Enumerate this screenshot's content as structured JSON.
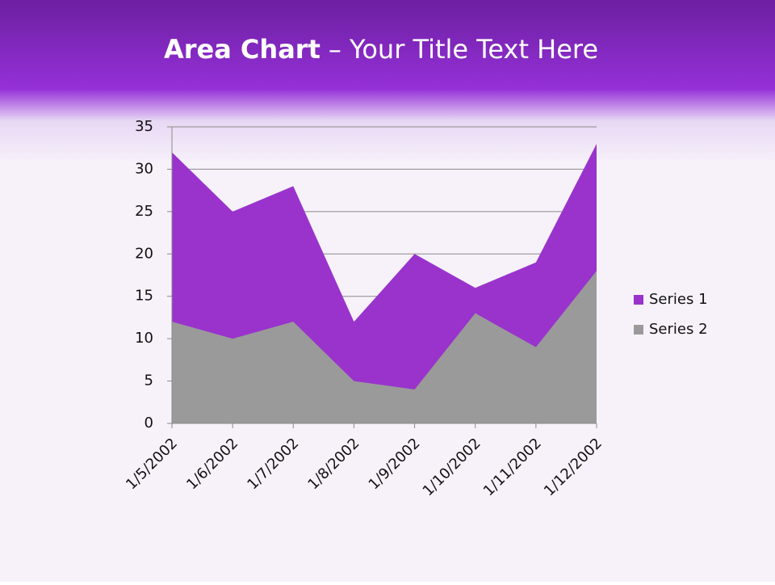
{
  "chart_data": {
    "type": "area",
    "title_parts": [
      "Area Chart",
      "– Your Title Text Here"
    ],
    "categories": [
      "1/5/2002",
      "1/6/2002",
      "1/7/2002",
      "1/8/2002",
      "1/9/2002",
      "1/10/2002",
      "1/11/2002",
      "1/12/2002"
    ],
    "series": [
      {
        "name": "Series 1",
        "color": "#9933cc",
        "values": [
          32,
          25,
          28,
          12,
          20,
          16,
          19,
          33
        ]
      },
      {
        "name": "Series 2",
        "color": "#9a9a9a",
        "values": [
          12,
          10,
          12,
          5,
          4,
          13,
          9,
          18
        ]
      }
    ],
    "ylim": [
      0,
      35
    ],
    "yticks": [
      0,
      5,
      10,
      15,
      20,
      25,
      30,
      35
    ],
    "grid": true,
    "legend": "right"
  }
}
